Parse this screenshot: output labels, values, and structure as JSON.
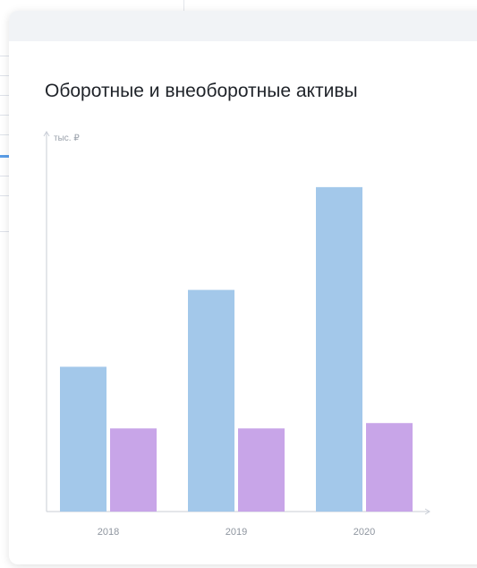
{
  "card": {
    "title": "Оборотные и внеоборотные активы"
  },
  "chart_data": {
    "type": "bar",
    "title": "Оборотные и внеоборотные активы",
    "ylabel": "тыс. ₽",
    "xlabel": "",
    "categories": [
      "2018",
      "2019",
      "2020"
    ],
    "series": [
      {
        "values": [
          162,
          248,
          363
        ],
        "color": "#a3c8ea"
      },
      {
        "values": [
          93,
          93,
          99
        ],
        "color": "#c8a5e8"
      }
    ],
    "ylim": [
      0,
      420
    ],
    "grid": false,
    "legend": "none"
  }
}
